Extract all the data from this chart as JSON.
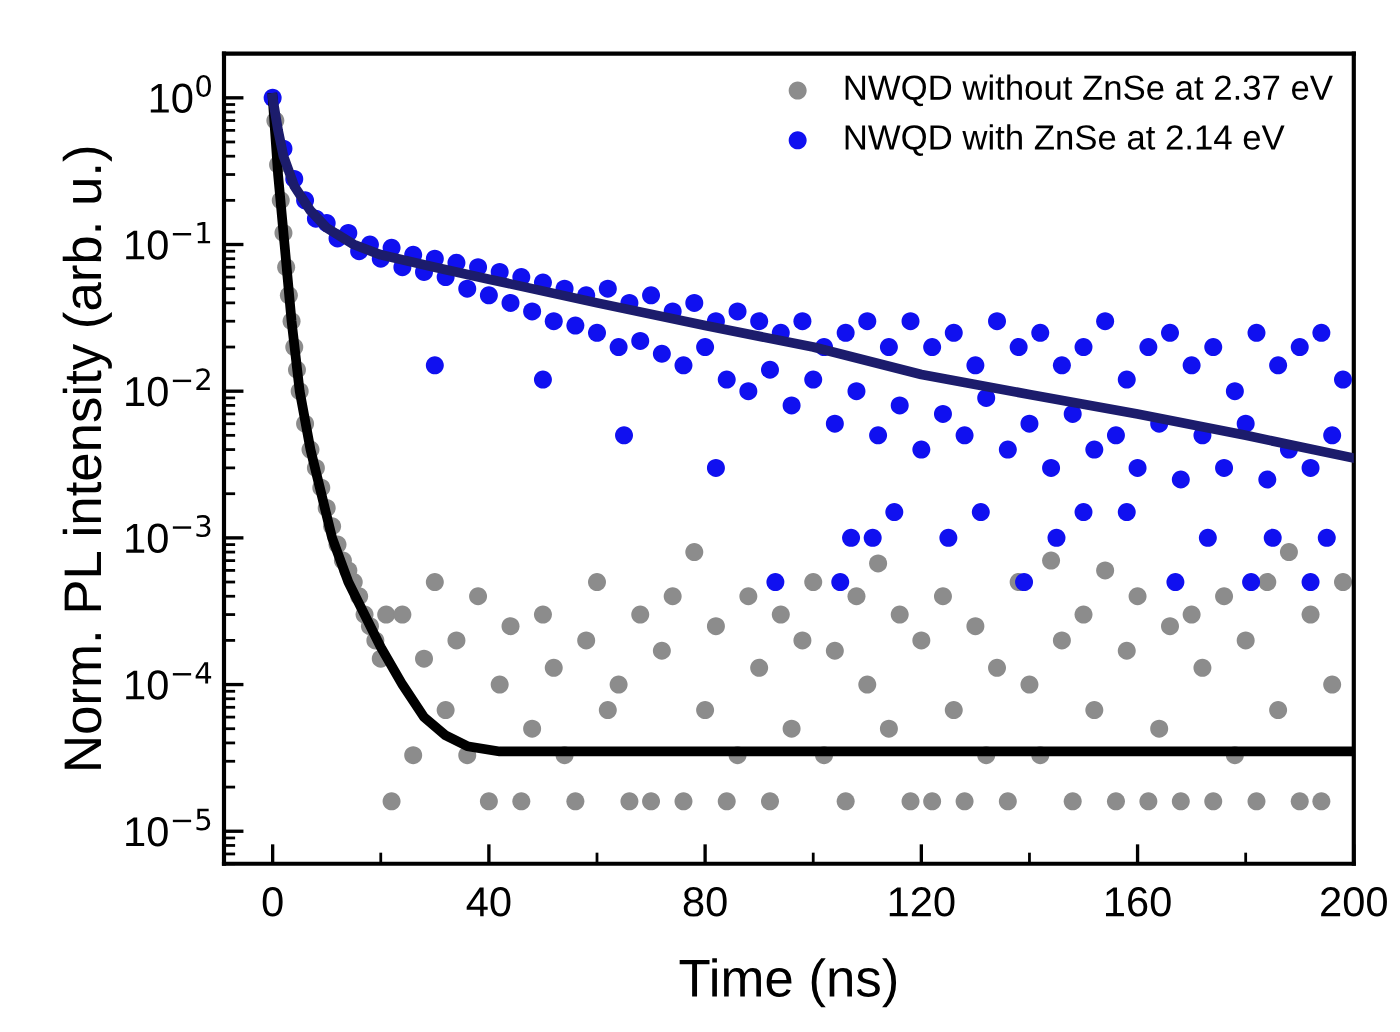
{
  "chart_data": {
    "type": "scatter",
    "xlabel": "Time (ns)",
    "ylabel": "Norm. PL intensity (arb. u.)",
    "log": "y",
    "xlim": [
      -9,
      200
    ],
    "xticks": [
      0,
      40,
      80,
      120,
      160,
      200
    ],
    "ylim": [
      6e-06,
      2
    ],
    "yticks": [
      {
        "value": 1e-05,
        "label": "10$^{−5}$"
      },
      {
        "value": 0.0001,
        "label": "10$^{−4}$"
      },
      {
        "value": 0.001,
        "label": "10$^{−3}$"
      },
      {
        "value": 0.01,
        "label": "10$^{−2}$"
      },
      {
        "value": 0.1,
        "label": "10$^{−1}$"
      },
      {
        "value": 1,
        "label": "10$^{0}$"
      }
    ],
    "grid": false,
    "legend": "top right",
    "marker": "circle",
    "series": [
      {
        "name": "NWQD without ZnSe at 2.37 eV",
        "color": "#8c8c8c",
        "x": [
          0.5,
          1,
          1.5,
          2,
          2.5,
          3,
          3.5,
          4,
          4.5,
          5,
          6,
          7,
          8,
          9,
          10,
          11,
          12,
          13,
          14,
          15,
          16,
          17,
          18,
          19,
          20,
          21,
          22,
          24,
          26,
          28,
          30,
          32,
          34,
          36,
          38,
          40,
          42,
          44,
          46,
          48,
          50,
          52,
          54,
          56,
          58,
          60,
          62,
          64,
          66,
          68,
          70,
          72,
          74,
          76,
          78,
          80,
          82,
          84,
          86,
          88,
          90,
          92,
          94,
          96,
          98,
          100,
          102,
          104,
          106,
          108,
          110,
          112,
          114,
          116,
          118,
          120,
          122,
          124,
          126,
          128,
          130,
          132,
          134,
          136,
          138,
          140,
          142,
          144,
          146,
          148,
          150,
          152,
          154,
          156,
          158,
          160,
          162,
          164,
          166,
          168,
          170,
          172,
          174,
          176,
          178,
          180,
          182,
          184,
          186,
          188,
          190,
          192,
          194,
          196,
          198
        ],
        "values": [
          0.7,
          0.35,
          0.2,
          0.12,
          0.07,
          0.045,
          0.03,
          0.02,
          0.014,
          0.01,
          0.006,
          0.004,
          0.003,
          0.0022,
          0.0016,
          0.0012,
          0.0009,
          0.0007,
          0.0006,
          0.0005,
          0.0004,
          0.0003,
          0.00025,
          0.0002,
          0.00015,
          0.0003,
          1.6e-05,
          0.0003,
          3.3e-05,
          0.00015,
          0.0005,
          6.7e-05,
          0.0002,
          3.3e-05,
          0.0004,
          1.6e-05,
          0.0001,
          0.00025,
          1.6e-05,
          5e-05,
          0.0003,
          0.00013,
          3.3e-05,
          1.6e-05,
          0.0002,
          0.0005,
          6.7e-05,
          0.0001,
          1.6e-05,
          0.0003,
          1.6e-05,
          0.00017,
          0.0004,
          1.6e-05,
          0.0008,
          6.7e-05,
          0.00025,
          1.6e-05,
          3.3e-05,
          0.0004,
          0.00013,
          1.6e-05,
          0.0003,
          5e-05,
          0.0002,
          0.0005,
          3.3e-05,
          0.00017,
          1.6e-05,
          0.0004,
          0.0001,
          0.00067,
          5e-05,
          0.0003,
          1.6e-05,
          0.0002,
          1.6e-05,
          0.0004,
          6.7e-05,
          1.6e-05,
          0.00025,
          3.3e-05,
          0.00013,
          1.6e-05,
          0.0005,
          0.0001,
          3.3e-05,
          0.0007,
          0.0002,
          1.6e-05,
          0.0003,
          6.7e-05,
          0.0006,
          1.6e-05,
          0.00017,
          0.0004,
          1.6e-05,
          5e-05,
          0.00025,
          1.6e-05,
          0.0003,
          0.00013,
          1.6e-05,
          0.0004,
          3.3e-05,
          0.0002,
          1.6e-05,
          0.0005,
          6.7e-05,
          0.0008,
          1.6e-05,
          0.0003,
          1.6e-05,
          0.0001,
          0.0005
        ]
      },
      {
        "name": "NWQD with ZnSe at 2.14 eV",
        "color": "#1010f0",
        "x": [
          0,
          2,
          4,
          6,
          8,
          10,
          12,
          14,
          16,
          18,
          20,
          22,
          24,
          26,
          28,
          30,
          32,
          34,
          36,
          38,
          40,
          42,
          44,
          46,
          48,
          50,
          52,
          54,
          56,
          58,
          60,
          62,
          64,
          66,
          68,
          70,
          72,
          74,
          76,
          78,
          80,
          82,
          84,
          86,
          88,
          90,
          92,
          94,
          96,
          98,
          100,
          102,
          104,
          106,
          108,
          110,
          112,
          114,
          116,
          118,
          120,
          122,
          124,
          126,
          128,
          130,
          132,
          134,
          136,
          138,
          140,
          142,
          144,
          146,
          148,
          150,
          152,
          154,
          156,
          158,
          160,
          162,
          164,
          166,
          168,
          170,
          172,
          174,
          176,
          178,
          180,
          182,
          184,
          186,
          188,
          190,
          192,
          194,
          196,
          198,
          30,
          50,
          65,
          82,
          93,
          105,
          107,
          111,
          115,
          125,
          131,
          139,
          145,
          150,
          158,
          167,
          173,
          181,
          185,
          192,
          195
        ],
        "values": [
          1.0,
          0.45,
          0.28,
          0.2,
          0.15,
          0.14,
          0.11,
          0.12,
          0.09,
          0.1,
          0.08,
          0.095,
          0.07,
          0.085,
          0.065,
          0.08,
          0.06,
          0.075,
          0.05,
          0.07,
          0.045,
          0.065,
          0.04,
          0.06,
          0.035,
          0.055,
          0.03,
          0.05,
          0.028,
          0.045,
          0.025,
          0.05,
          0.02,
          0.04,
          0.022,
          0.045,
          0.018,
          0.035,
          0.015,
          0.04,
          0.02,
          0.03,
          0.012,
          0.035,
          0.01,
          0.03,
          0.014,
          0.025,
          0.008,
          0.03,
          0.012,
          0.02,
          0.006,
          0.025,
          0.01,
          0.03,
          0.005,
          0.02,
          0.008,
          0.03,
          0.004,
          0.02,
          0.007,
          0.025,
          0.005,
          0.015,
          0.009,
          0.03,
          0.004,
          0.02,
          0.006,
          0.025,
          0.003,
          0.015,
          0.007,
          0.02,
          0.004,
          0.03,
          0.005,
          0.012,
          0.003,
          0.02,
          0.006,
          0.025,
          0.0025,
          0.015,
          0.005,
          0.02,
          0.003,
          0.01,
          0.006,
          0.025,
          0.0025,
          0.015,
          0.004,
          0.02,
          0.003,
          0.025,
          0.005,
          0.012,
          0.015,
          0.012,
          0.005,
          0.003,
          0.0005,
          0.0005,
          0.001,
          0.001,
          0.0015,
          0.001,
          0.0015,
          0.0005,
          0.001,
          0.0015,
          0.0015,
          0.0005,
          0.001,
          0.0005,
          0.001,
          0.0005,
          0.001
        ]
      },
      {
        "type": "line",
        "color": "#000000",
        "marker": "none",
        "x": [
          0,
          1,
          2.2,
          3.5,
          5,
          7,
          9,
          11,
          14,
          17,
          20,
          24,
          28,
          32,
          36,
          42,
          200
        ],
        "values": [
          1,
          0.3,
          0.1,
          0.03,
          0.01,
          0.004,
          0.002,
          0.001,
          0.0005,
          0.0003,
          0.00018,
          0.0001,
          6e-05,
          4.5e-05,
          3.8e-05,
          3.5e-05,
          3.5e-05
        ]
      },
      {
        "type": "line",
        "color": "#1c1c6c",
        "marker": "none",
        "x": [
          0,
          1,
          2,
          4,
          7,
          10,
          15,
          20,
          30,
          40,
          60,
          80,
          100,
          120,
          140,
          160,
          180,
          200
        ],
        "values": [
          1,
          0.6,
          0.4,
          0.25,
          0.17,
          0.13,
          0.1,
          0.085,
          0.07,
          0.058,
          0.04,
          0.028,
          0.02,
          0.013,
          0.0095,
          0.007,
          0.005,
          0.0035
        ]
      }
    ]
  }
}
